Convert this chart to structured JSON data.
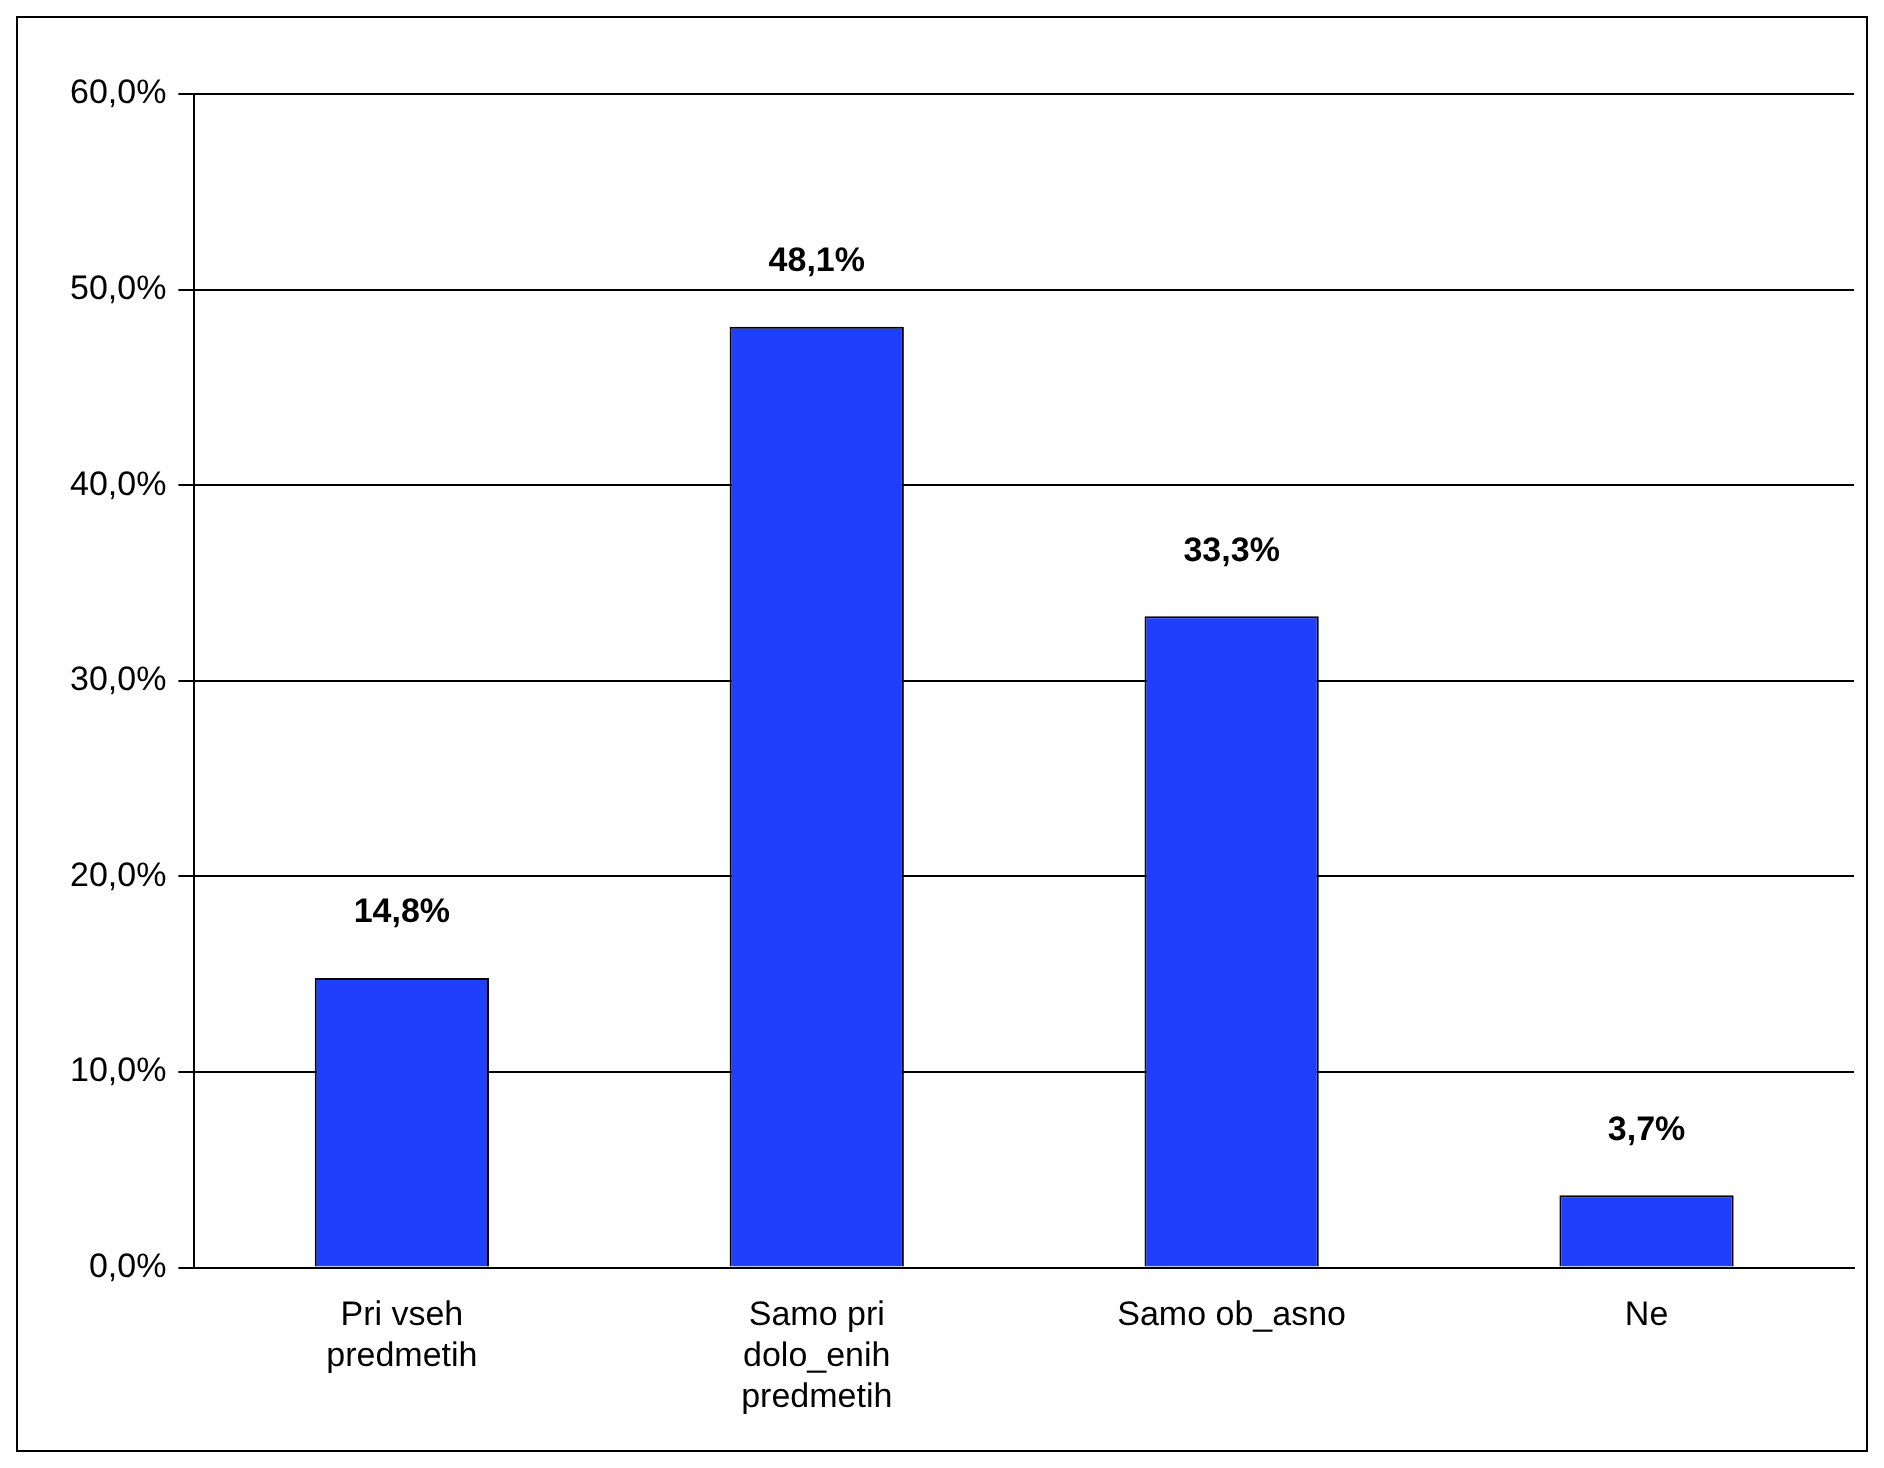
{
  "chart_data": {
    "type": "bar",
    "categories": [
      "Pri vseh predmetih",
      "Samo pri dolo_enih predmetih",
      "Samo ob_asno",
      "Ne"
    ],
    "values": [
      14.8,
      48.1,
      33.3,
      3.7
    ],
    "color": "#1f3ffb",
    "value_labels": [
      "14,8%",
      "48,1%",
      "33,3%",
      "3,7%"
    ],
    "ylim": [
      0,
      60
    ],
    "yticks": [
      {
        "value": 0,
        "label": "0,0%"
      },
      {
        "value": 10,
        "label": "10,0%"
      },
      {
        "value": 20,
        "label": "20,0%"
      },
      {
        "value": 30,
        "label": "30,0%"
      },
      {
        "value": 40,
        "label": "40,0%"
      },
      {
        "value": 50,
        "label": "50,0%"
      },
      {
        "value": 60,
        "label": "60,0%"
      }
    ],
    "grid": "y",
    "legend": false
  }
}
